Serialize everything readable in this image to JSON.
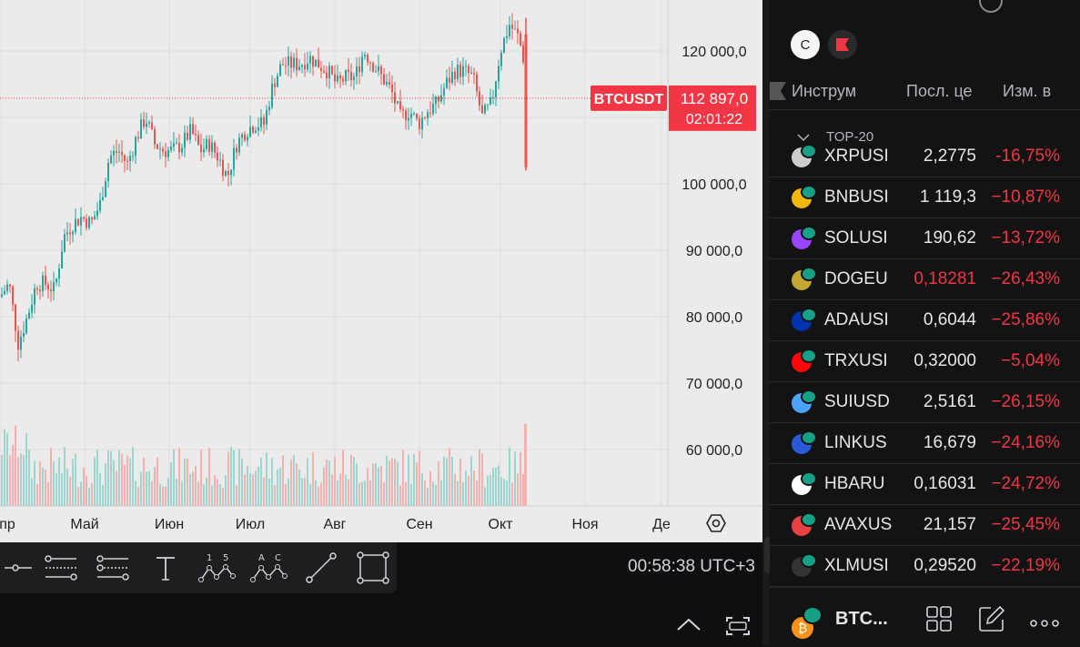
{
  "chart": {
    "price_ticks": [
      "120 000,0",
      "100 000,0",
      "90 000,0",
      "80 000,0",
      "70 000,0",
      "60 000,0"
    ],
    "month_ticks": [
      "пр",
      "Май",
      "Июн",
      "Июл",
      "Авг",
      "Сен",
      "Окт",
      "Ноя",
      "Де"
    ],
    "symbol_label": "BTCUSDT",
    "last_price": "112 897,0",
    "countdown": "02:01:22",
    "colors": {
      "up": "#26a69a",
      "down": "#ef5350",
      "bg": "#ebebeb",
      "grid": "#dcdcdc",
      "label_bg": "#f23645"
    }
  },
  "chart_data": {
    "type": "candlestick",
    "ylim": [
      52000,
      128000
    ],
    "x": [
      "пр",
      "Май",
      "Июн",
      "Июл",
      "Авг",
      "Сен",
      "Окт",
      "Ноя",
      "Де"
    ],
    "close_path": [
      [
        0,
        83000
      ],
      [
        10,
        85000
      ],
      [
        20,
        76000
      ],
      [
        30,
        80000
      ],
      [
        40,
        85000
      ],
      [
        50,
        85000
      ],
      [
        60,
        84000
      ],
      [
        70,
        92000
      ],
      [
        80,
        94000
      ],
      [
        90,
        95000
      ],
      [
        100,
        94000
      ],
      [
        110,
        97000
      ],
      [
        120,
        104000
      ],
      [
        130,
        105000
      ],
      [
        140,
        103000
      ],
      [
        150,
        107000
      ],
      [
        160,
        110000
      ],
      [
        170,
        106000
      ],
      [
        180,
        105000
      ],
      [
        190,
        105000
      ],
      [
        200,
        106000
      ],
      [
        210,
        108000
      ],
      [
        220,
        105000
      ],
      [
        230,
        106000
      ],
      [
        240,
        104000
      ],
      [
        250,
        101000
      ],
      [
        260,
        106000
      ],
      [
        270,
        108000
      ],
      [
        280,
        109000
      ],
      [
        290,
        109000
      ],
      [
        300,
        115000
      ],
      [
        310,
        118000
      ],
      [
        320,
        118000
      ],
      [
        330,
        118000
      ],
      [
        340,
        119000
      ],
      [
        350,
        118000
      ],
      [
        360,
        117000
      ],
      [
        370,
        115000
      ],
      [
        380,
        116000
      ],
      [
        390,
        116000
      ],
      [
        400,
        120000
      ],
      [
        410,
        118000
      ],
      [
        420,
        116000
      ],
      [
        430,
        114000
      ],
      [
        440,
        110000
      ],
      [
        450,
        111000
      ],
      [
        460,
        109000
      ],
      [
        470,
        111000
      ],
      [
        480,
        112000
      ],
      [
        490,
        115000
      ],
      [
        500,
        117000
      ],
      [
        510,
        117000
      ],
      [
        520,
        116000
      ],
      [
        530,
        110000
      ],
      [
        540,
        112000
      ],
      [
        550,
        120000
      ],
      [
        560,
        124000
      ],
      [
        570,
        122000
      ],
      [
        575,
        119000
      ],
      [
        578,
        105000
      ]
    ],
    "volume_hint": "bars at bottom of pane, spike near Oct"
  },
  "toolbar": {
    "tools": [
      "cursor-line",
      "fib-retracement",
      "fib-extension",
      "text",
      "abcd-pattern",
      "abc-pattern",
      "trend-line",
      "rectangle"
    ],
    "pattern_labels": {
      "one": "1",
      "five": "5",
      "a": "A",
      "c": "C"
    },
    "clock": "00:58:38 UTC+3"
  },
  "panel": {
    "avatar_letter": "C",
    "headers": {
      "instrument": "Инструм",
      "last_price": "Посл. це",
      "change": "Изм. в"
    },
    "group_name": "TOP-20",
    "rows": [
      {
        "sym": "XRPUSI",
        "price": "2,2775",
        "chg": "-16,75%",
        "color": "#cccccc"
      },
      {
        "sym": "BNBUSI",
        "price": "1 119,3",
        "chg": "−10,87%",
        "color": "#f0b90b"
      },
      {
        "sym": "SOLUSI",
        "price": "190,62",
        "chg": "−13,72%",
        "color": "#9945ff"
      },
      {
        "sym": "DOGEU",
        "price": "0,18281",
        "chg": "−26,43%",
        "color": "#c2a633"
      },
      {
        "sym": "ADAUSI",
        "price": "0,6044",
        "chg": "−25,86%",
        "color": "#0033ad"
      },
      {
        "sym": "TRXUSI",
        "price": "0,32000",
        "chg": "−5,04%",
        "color": "#ff060a"
      },
      {
        "sym": "SUIUSD",
        "price": "2,5161",
        "chg": "−26,15%",
        "color": "#4da2ff"
      },
      {
        "sym": "LINKUS",
        "price": "16,679",
        "chg": "−24,16%",
        "color": "#2a5ada"
      },
      {
        "sym": "HBARU",
        "price": "0,16031",
        "chg": "−24,72%",
        "color": "#ffffff"
      },
      {
        "sym": "AVAXUS",
        "price": "21,157",
        "chg": "−25,45%",
        "color": "#e84142"
      },
      {
        "sym": "XLMUSI",
        "price": "0,29520",
        "chg": "−22,19%",
        "color": "#333333"
      }
    ],
    "footer_symbol": "BTC..."
  }
}
